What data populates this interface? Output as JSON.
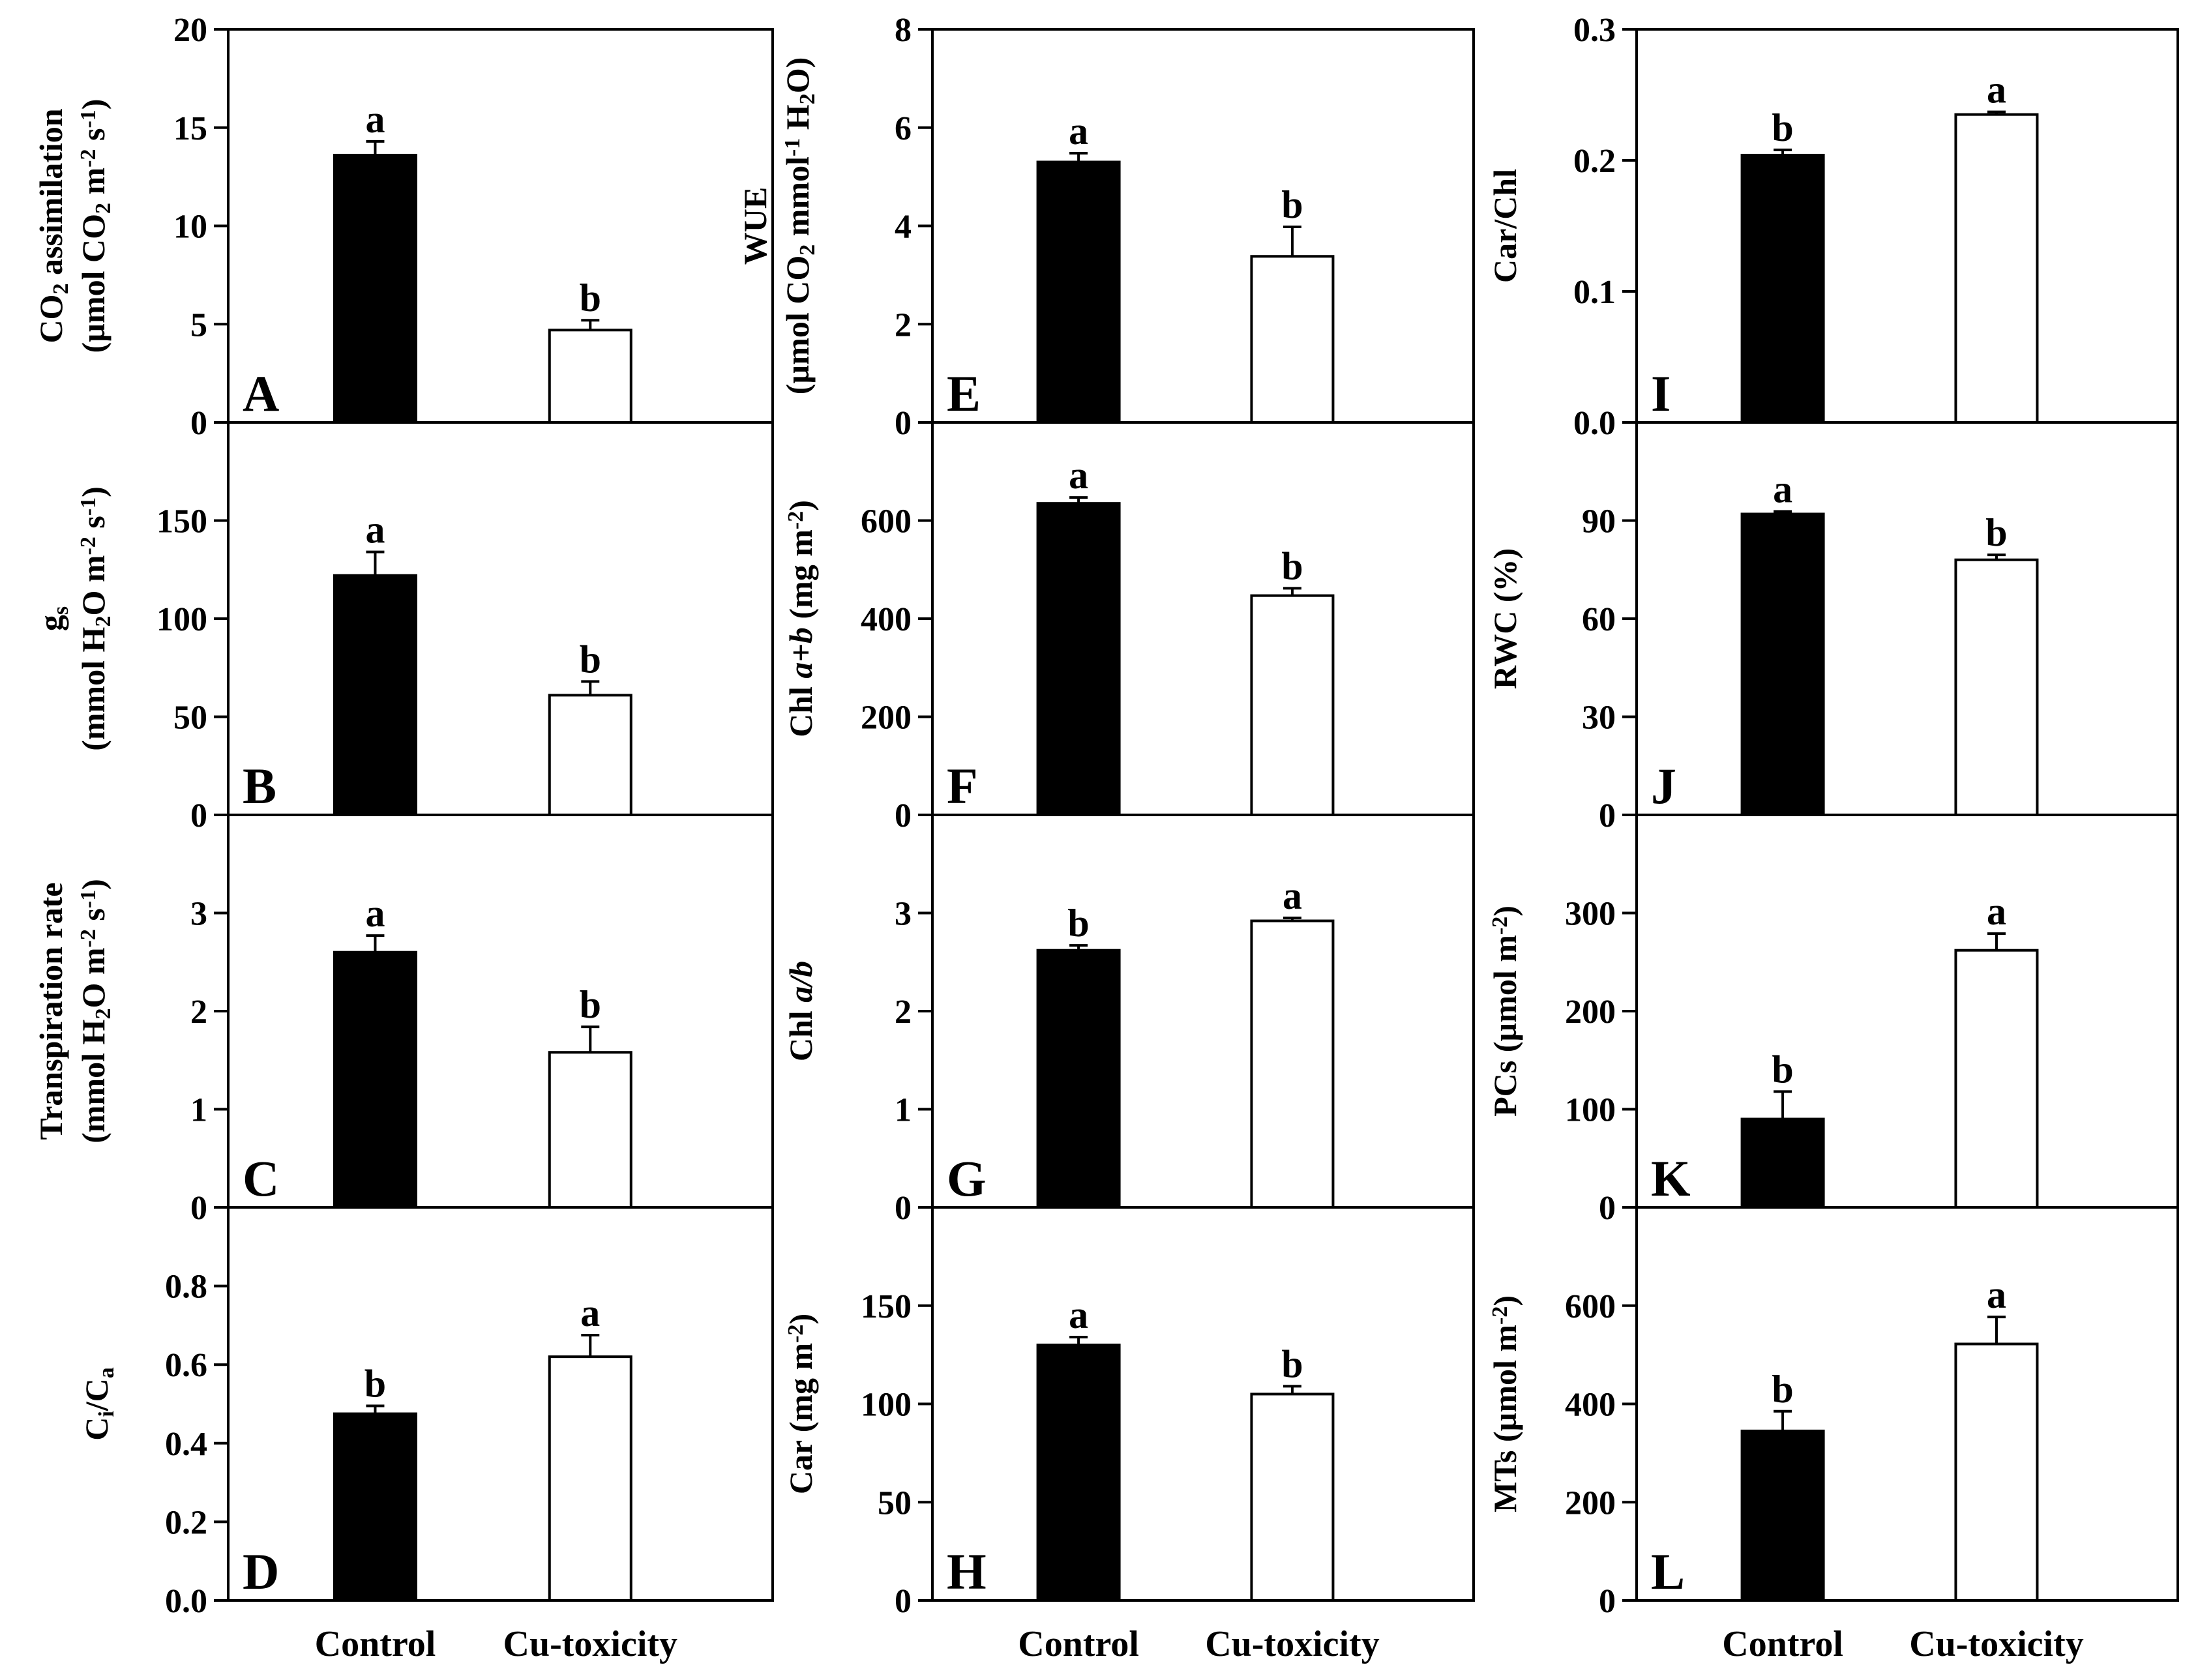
{
  "chart_data": {
    "type": "bar",
    "categories": [
      "Control",
      "Cu-toxicity"
    ],
    "colors": {
      "Control": "#000000",
      "Cu-toxicity": "#ffffff",
      "axis": "#000000"
    },
    "panels": [
      {
        "letter": "A",
        "ylabel": {
          "line1": [
            {
              "t": "CO"
            },
            {
              "t": "2",
              "sub": true
            },
            {
              "t": " assimilation"
            }
          ],
          "line2": [
            {
              "t": "(µmol CO"
            },
            {
              "t": "2",
              "sub": true
            },
            {
              "t": " m"
            },
            {
              "t": "-2",
              "sup": true
            },
            {
              "t": " s"
            },
            {
              "t": "-1",
              "sup": true
            },
            {
              "t": ")"
            }
          ]
        },
        "ylim": [
          0,
          20
        ],
        "yticks": [
          "0",
          "5",
          "10",
          "15",
          "20"
        ],
        "values": [
          13.6,
          4.7
        ],
        "errors": [
          0.7,
          0.5
        ],
        "sig": [
          "a",
          "b"
        ]
      },
      {
        "letter": "B",
        "ylabel": {
          "line1": [
            {
              "t": "g"
            },
            {
              "t": "s",
              "sub": true
            }
          ],
          "line2": [
            {
              "t": "(mmol H"
            },
            {
              "t": "2",
              "sub": true
            },
            {
              "t": "O m"
            },
            {
              "t": "-2",
              "sup": true
            },
            {
              "t": " s"
            },
            {
              "t": "-1",
              "sup": true
            },
            {
              "t": ")"
            }
          ]
        },
        "ylim": [
          0,
          200
        ],
        "yticks": [
          "0",
          "50",
          "100",
          "150",
          ""
        ],
        "values": [
          122,
          61
        ],
        "errors": [
          12,
          7
        ],
        "sig": [
          "a",
          "b"
        ]
      },
      {
        "letter": "C",
        "ylabel": {
          "line1": [
            {
              "t": "Transpiration rate"
            }
          ],
          "line2": [
            {
              "t": "(mmol H"
            },
            {
              "t": "2",
              "sub": true
            },
            {
              "t": "O m"
            },
            {
              "t": "-2",
              "sup": true
            },
            {
              "t": " s"
            },
            {
              "t": "-1",
              "sup": true
            },
            {
              "t": ")"
            }
          ]
        },
        "ylim": [
          0,
          4
        ],
        "yticks": [
          "0",
          "1",
          "2",
          "3",
          ""
        ],
        "values": [
          2.6,
          1.58
        ],
        "errors": [
          0.17,
          0.26
        ],
        "sig": [
          "a",
          "b"
        ]
      },
      {
        "letter": "D",
        "ylabel": {
          "line1": [
            {
              "t": "C"
            },
            {
              "t": "i",
              "sub": true
            },
            {
              "t": "/C"
            },
            {
              "t": "a",
              "sub": true
            }
          ]
        },
        "ylim": [
          0,
          1
        ],
        "yticks": [
          "0.0",
          "0.2",
          "0.4",
          "0.6",
          "0.8",
          ""
        ],
        "values": [
          0.475,
          0.62
        ],
        "errors": [
          0.02,
          0.055
        ],
        "sig": [
          "b",
          "a"
        ]
      },
      {
        "letter": "E",
        "ylabel": {
          "line1": [
            {
              "t": "WUE"
            }
          ],
          "line2": [
            {
              "t": "(µmol CO"
            },
            {
              "t": "2",
              "sub": true
            },
            {
              "t": " mmol"
            },
            {
              "t": "-1",
              "sup": true
            },
            {
              "t": " H"
            },
            {
              "t": "2",
              "sub": true
            },
            {
              "t": "O)"
            }
          ]
        },
        "ylim": [
          0,
          8
        ],
        "yticks": [
          "0",
          "2",
          "4",
          "6",
          "8"
        ],
        "values": [
          5.3,
          3.38
        ],
        "errors": [
          0.18,
          0.6
        ],
        "sig": [
          "a",
          "b"
        ]
      },
      {
        "letter": "F",
        "ylabel": {
          "line1": [
            {
              "t": "Chl "
            },
            {
              "t": "a+b",
              "it": true
            },
            {
              "t": " (mg m"
            },
            {
              "t": "-2",
              "sup": true
            },
            {
              "t": ")"
            }
          ]
        },
        "ylim": [
          0,
          800
        ],
        "yticks": [
          "0",
          "200",
          "400",
          "600",
          ""
        ],
        "values": [
          635,
          447
        ],
        "errors": [
          12,
          15
        ],
        "sig": [
          "a",
          "b"
        ]
      },
      {
        "letter": "G",
        "ylabel": {
          "line1": [
            {
              "t": "Chl "
            },
            {
              "t": "a/b",
              "it": true
            }
          ]
        },
        "ylim": [
          0,
          4
        ],
        "yticks": [
          "0",
          "1",
          "2",
          "3",
          ""
        ],
        "values": [
          2.62,
          2.92
        ],
        "errors": [
          0.05,
          0.03
        ],
        "sig": [
          "b",
          "a"
        ]
      },
      {
        "letter": "H",
        "ylabel": {
          "line1": [
            {
              "t": "Car (mg m"
            },
            {
              "t": "-2",
              "sup": true
            },
            {
              "t": ")"
            }
          ]
        },
        "ylim": [
          0,
          200
        ],
        "yticks": [
          "0",
          "50",
          "100",
          "150",
          ""
        ],
        "values": [
          130,
          105
        ],
        "errors": [
          4,
          4
        ],
        "sig": [
          "a",
          "b"
        ]
      },
      {
        "letter": "I",
        "ylabel": {
          "line1": [
            {
              "t": "Car/Chl"
            }
          ]
        },
        "ylim": [
          0,
          0.3
        ],
        "yticks": [
          "0.0",
          "0.1",
          "0.2",
          "0.3"
        ],
        "values": [
          0.204,
          0.235
        ],
        "errors": [
          0.004,
          0.002
        ],
        "sig": [
          "b",
          "a"
        ]
      },
      {
        "letter": "J",
        "ylabel": {
          "line1": [
            {
              "t": "RWC (%)"
            }
          ]
        },
        "ylim": [
          0,
          120
        ],
        "yticks": [
          "0",
          "30",
          "60",
          "90",
          ""
        ],
        "values": [
          92,
          78
        ],
        "errors": [
          0.8,
          1.5
        ],
        "sig": [
          "a",
          "b"
        ]
      },
      {
        "letter": "K",
        "ylabel": {
          "line1": [
            {
              "t": "PCs (µmol m"
            },
            {
              "t": "-2",
              "sup": true
            },
            {
              "t": ")"
            }
          ]
        },
        "ylim": [
          0,
          400
        ],
        "yticks": [
          "0",
          "100",
          "200",
          "300",
          ""
        ],
        "values": [
          90,
          262
        ],
        "errors": [
          28,
          17
        ],
        "sig": [
          "b",
          "a"
        ]
      },
      {
        "letter": "L",
        "ylabel": {
          "line1": [
            {
              "t": "MTs (µmol m"
            },
            {
              "t": "-2",
              "sup": true
            },
            {
              "t": ")"
            }
          ]
        },
        "ylim": [
          0,
          800
        ],
        "yticks": [
          "0",
          "200",
          "400",
          "600",
          ""
        ],
        "values": [
          345,
          522
        ],
        "errors": [
          40,
          55
        ],
        "sig": [
          "b",
          "a"
        ]
      }
    ]
  }
}
